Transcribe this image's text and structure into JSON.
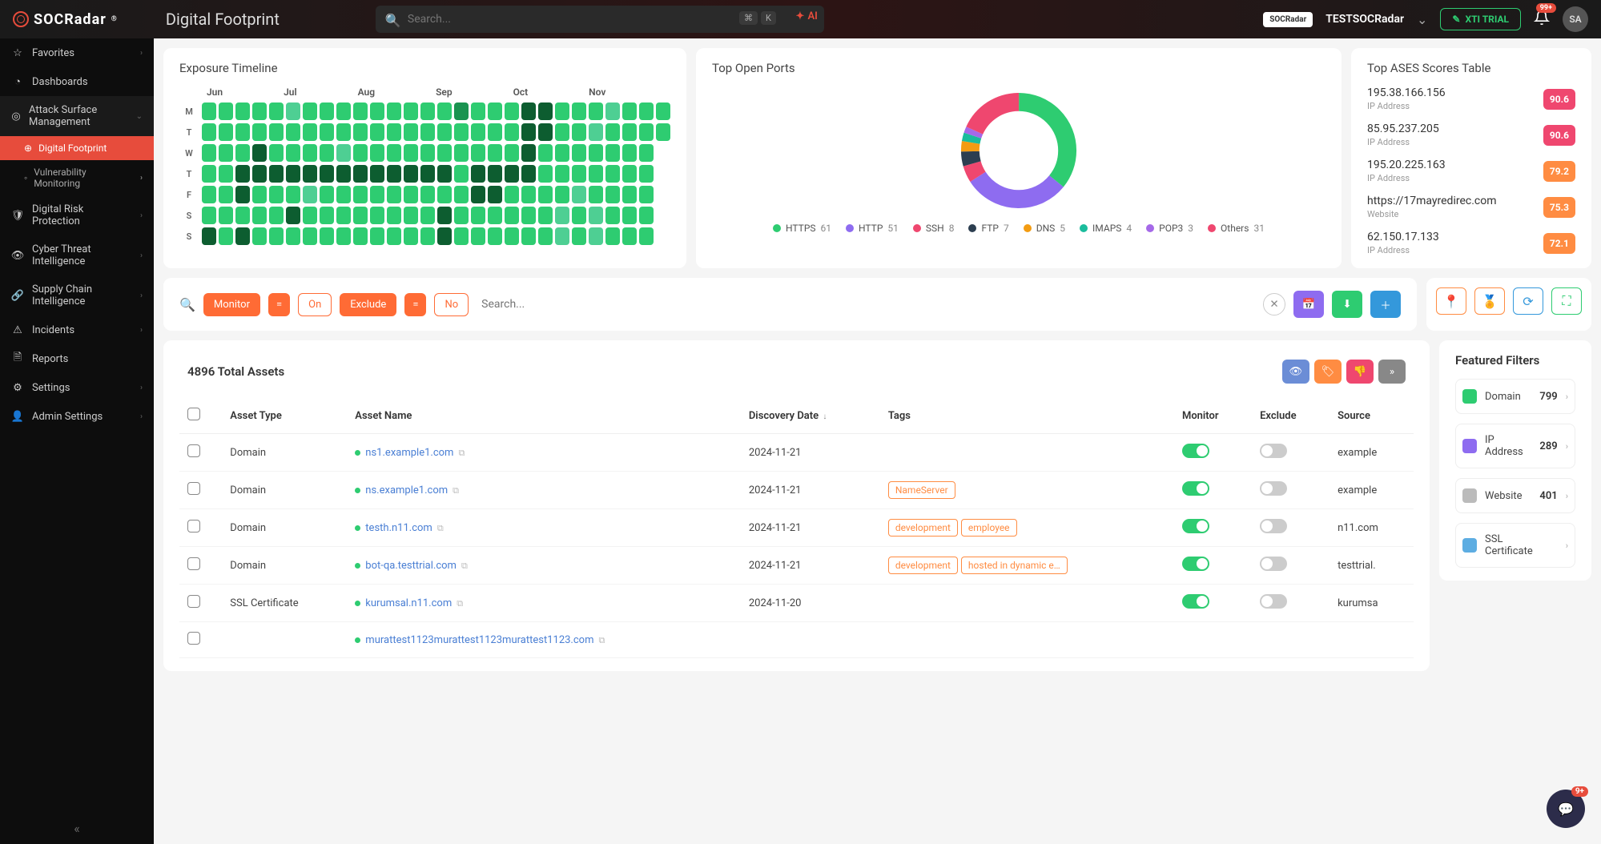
{
  "brand": "SOCRadar",
  "page_title": "Digital Footprint",
  "search": {
    "placeholder": "Search...",
    "kbd1": "⌘",
    "kbd2": "K",
    "ai": "AI"
  },
  "org": {
    "chip": "SOCRadar",
    "name": "TESTSOCRadar"
  },
  "xti_label": "XTI TRIAL",
  "notif_badge": "99+",
  "avatar": "SA",
  "sidebar": [
    {
      "label": "Favorites",
      "icon": "star",
      "chev": true
    },
    {
      "label": "Dashboards",
      "icon": "gauge",
      "chev": false
    },
    {
      "label": "Attack Surface Management",
      "icon": "target",
      "chev": true,
      "expanded": true,
      "children": [
        {
          "label": "Digital Footprint",
          "active": true
        },
        {
          "label": "Vulnerability Monitoring",
          "chev": true
        }
      ]
    },
    {
      "label": "Digital Risk Protection",
      "icon": "shield",
      "chev": true
    },
    {
      "label": "Cyber Threat Intelligence",
      "icon": "eye",
      "chev": true
    },
    {
      "label": "Supply Chain Intelligence",
      "icon": "chain",
      "chev": true
    },
    {
      "label": "Incidents",
      "icon": "alert",
      "chev": true
    },
    {
      "label": "Reports",
      "icon": "doc",
      "chev": false
    },
    {
      "label": "Settings",
      "icon": "gear",
      "chev": true
    },
    {
      "label": "Admin Settings",
      "icon": "admin",
      "chev": true
    }
  ],
  "timeline": {
    "title": "Exposure Timeline",
    "months": [
      "Jun",
      "Jul",
      "Aug",
      "Sep",
      "Oct",
      "Nov"
    ],
    "days": [
      "M",
      "T",
      "W",
      "T",
      "F",
      "S",
      "S"
    ],
    "colors": {
      "l1": "#7eddb0",
      "l2": "#4ecf93",
      "l3": "#2ecc71",
      "l4": "#1a9350",
      "l5": "#0d5d30",
      "empty": "transparent"
    },
    "grid": [
      [
        3,
        3,
        3,
        3,
        3,
        2,
        3,
        3,
        3,
        3,
        3,
        3,
        3,
        3,
        3,
        4,
        3,
        3,
        3,
        5,
        5,
        3,
        3,
        3,
        2,
        3,
        3,
        3
      ],
      [
        3,
        3,
        3,
        3,
        3,
        3,
        3,
        3,
        3,
        3,
        3,
        3,
        3,
        3,
        3,
        3,
        3,
        3,
        3,
        5,
        5,
        3,
        3,
        2,
        3,
        3,
        3,
        3
      ],
      [
        3,
        3,
        3,
        5,
        3,
        3,
        3,
        3,
        2,
        3,
        3,
        3,
        3,
        3,
        3,
        3,
        3,
        3,
        3,
        5,
        3,
        3,
        3,
        3,
        3,
        3,
        3,
        0
      ],
      [
        3,
        3,
        5,
        5,
        5,
        5,
        5,
        5,
        5,
        5,
        5,
        5,
        5,
        5,
        5,
        3,
        5,
        5,
        5,
        5,
        3,
        3,
        3,
        3,
        3,
        3,
        3,
        0
      ],
      [
        3,
        3,
        5,
        3,
        3,
        3,
        2,
        3,
        3,
        3,
        3,
        3,
        3,
        3,
        3,
        3,
        5,
        5,
        3,
        3,
        3,
        3,
        2,
        3,
        3,
        3,
        3,
        0
      ],
      [
        3,
        3,
        3,
        3,
        3,
        5,
        3,
        3,
        3,
        3,
        3,
        3,
        3,
        3,
        5,
        3,
        3,
        3,
        3,
        3,
        3,
        2,
        3,
        2,
        3,
        3,
        3,
        0
      ],
      [
        5,
        3,
        5,
        3,
        3,
        3,
        3,
        3,
        3,
        3,
        3,
        3,
        3,
        3,
        5,
        3,
        3,
        3,
        3,
        3,
        3,
        2,
        3,
        2,
        3,
        3,
        3,
        0
      ]
    ]
  },
  "ports": {
    "title": "Top Open Ports",
    "items": [
      {
        "label": "HTTPS",
        "value": 61,
        "color": "#2ecc71"
      },
      {
        "label": "HTTP",
        "value": 51,
        "color": "#8e6cf0"
      },
      {
        "label": "SSH",
        "value": 8,
        "color": "#ef476f"
      },
      {
        "label": "FTP",
        "value": 7,
        "color": "#2c3e50"
      },
      {
        "label": "DNS",
        "value": 5,
        "color": "#f39c12"
      },
      {
        "label": "IMAPS",
        "value": 4,
        "color": "#1abc9c"
      },
      {
        "label": "POP3",
        "value": 3,
        "color": "#a569e8"
      },
      {
        "label": "Others",
        "value": 31,
        "color": "#ef476f"
      }
    ]
  },
  "ases": {
    "title": "Top ASES Scores Table",
    "rows": [
      {
        "addr": "195.38.166.156",
        "type": "IP Address",
        "score": "90.6",
        "color": "#ef476f"
      },
      {
        "addr": "85.95.237.205",
        "type": "IP Address",
        "score": "90.6",
        "color": "#ef476f"
      },
      {
        "addr": "195.20.225.163",
        "type": "IP Address",
        "score": "79.2",
        "color": "#ff8c42"
      },
      {
        "addr": "https://17mayredirec.com",
        "type": "Website",
        "score": "75.3",
        "color": "#ff8c42"
      },
      {
        "addr": "62.150.17.133",
        "type": "IP Address",
        "score": "72.1",
        "color": "#ff8c42"
      }
    ]
  },
  "filterbar": {
    "monitor": "Monitor",
    "eq1": "=",
    "on": "On",
    "exclude": "Exclude",
    "eq2": "=",
    "no": "No",
    "search_placeholder": "Search...",
    "btn_colors": {
      "cal": "#8e6cf0",
      "dl": "#2ecc71",
      "add": "#3498db"
    }
  },
  "iconbar_colors": [
    "#ff8c42",
    "#ff8c42",
    "#3498db",
    "#2ecc71"
  ],
  "assets": {
    "total_label": "4896 Total Assets",
    "action_colors": [
      "#6b8dd6",
      "#ff8c42",
      "#ef476f",
      "#888"
    ],
    "columns": [
      "",
      "Asset Type",
      "Asset Name",
      "Discovery Date",
      "Tags",
      "Monitor",
      "Exclude",
      "Source"
    ],
    "rows": [
      {
        "type": "Domain",
        "name": "ns1.example1.com",
        "date": "2024-11-21",
        "tags": [],
        "monitor": true,
        "exclude": false,
        "source": "example"
      },
      {
        "type": "Domain",
        "name": "ns.example1.com",
        "date": "2024-11-21",
        "tags": [
          "NameServer"
        ],
        "monitor": true,
        "exclude": false,
        "source": "example"
      },
      {
        "type": "Domain",
        "name": "testh.n11.com",
        "date": "2024-11-21",
        "tags": [
          "development",
          "employee"
        ],
        "monitor": true,
        "exclude": false,
        "source": "n11.com"
      },
      {
        "type": "Domain",
        "name": "bot-qa.testtrial.com",
        "date": "2024-11-21",
        "tags": [
          "development",
          "hosted in dynamic e…"
        ],
        "monitor": true,
        "exclude": false,
        "source": "testtrial."
      },
      {
        "type": "SSL Certificate",
        "name": "kurumsal.n11.com",
        "date": "2024-11-20",
        "tags": [],
        "monitor": true,
        "exclude": false,
        "source": "kurumsa"
      },
      {
        "type": "",
        "name": "murattest1123murattest1123murattest1123.com",
        "date": "",
        "tags": [],
        "monitor": null,
        "exclude": null,
        "source": ""
      }
    ]
  },
  "filters": {
    "title": "Featured Filters",
    "items": [
      {
        "label": "Domain",
        "count": 799,
        "color": "#2ecc71"
      },
      {
        "label": "IP Address",
        "count": 289,
        "color": "#8e6cf0"
      },
      {
        "label": "Website",
        "count": 401,
        "color": "#bbb"
      },
      {
        "label": "SSL Certificate",
        "count": "",
        "color": "#5dade2"
      }
    ]
  },
  "chat_badge": "9+"
}
